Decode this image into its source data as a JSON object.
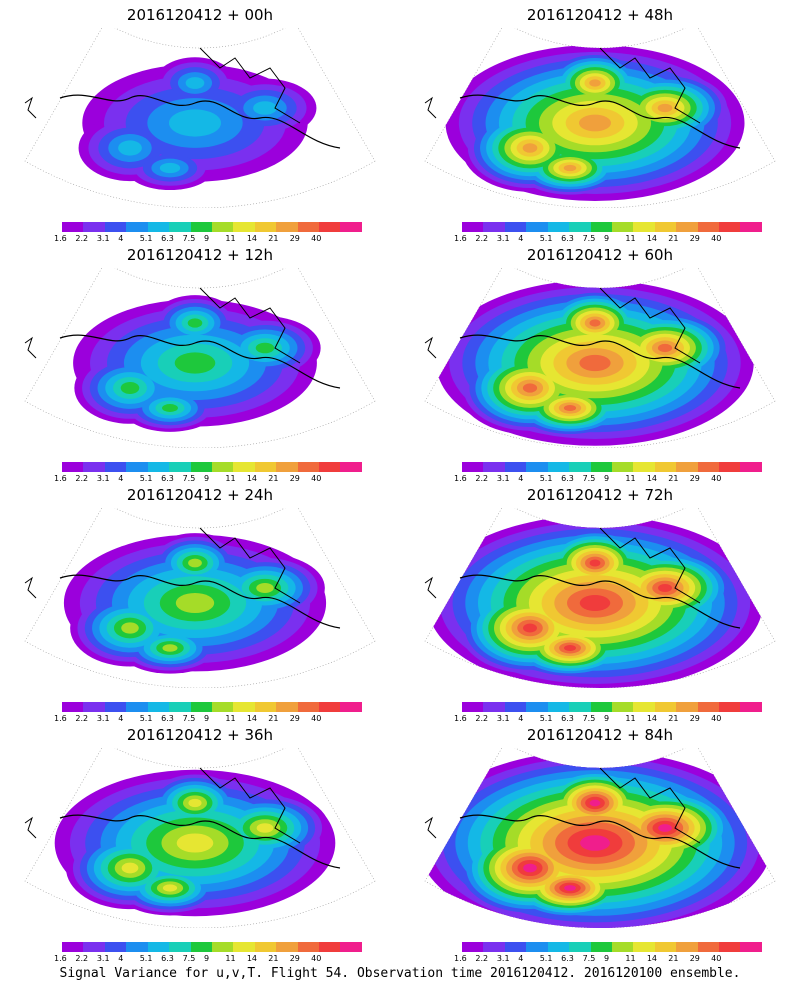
{
  "panels": [
    {
      "title": "2016120412 + 00h",
      "intensity": 1
    },
    {
      "title": "2016120412 + 48h",
      "intensity": 5
    },
    {
      "title": "2016120412 + 12h",
      "intensity": 2
    },
    {
      "title": "2016120412 + 60h",
      "intensity": 6
    },
    {
      "title": "2016120412 + 24h",
      "intensity": 3
    },
    {
      "title": "2016120412 + 72h",
      "intensity": 7
    },
    {
      "title": "2016120412 + 36h",
      "intensity": 4
    },
    {
      "title": "2016120412 + 84h",
      "intensity": 8
    }
  ],
  "colorbar": {
    "labels": [
      "1.6",
      "2.2",
      "3.1",
      "4",
      "5.1",
      "6.3",
      "7.5",
      "9",
      "11",
      "14",
      "21",
      "29",
      "40"
    ],
    "colors": [
      "#9b00dc",
      "#7a30ef",
      "#3c50f0",
      "#1c8ef0",
      "#14b8e6",
      "#18cfb8",
      "#1ec83c",
      "#a5dc28",
      "#e6e632",
      "#f0c832",
      "#f0a03c",
      "#f06a3c",
      "#f03c3c",
      "#f01e8c"
    ]
  },
  "caption": "Signal Variance for u,v,T. Flight 54. Observation time 2016120412. 2016120100 ensemble."
}
